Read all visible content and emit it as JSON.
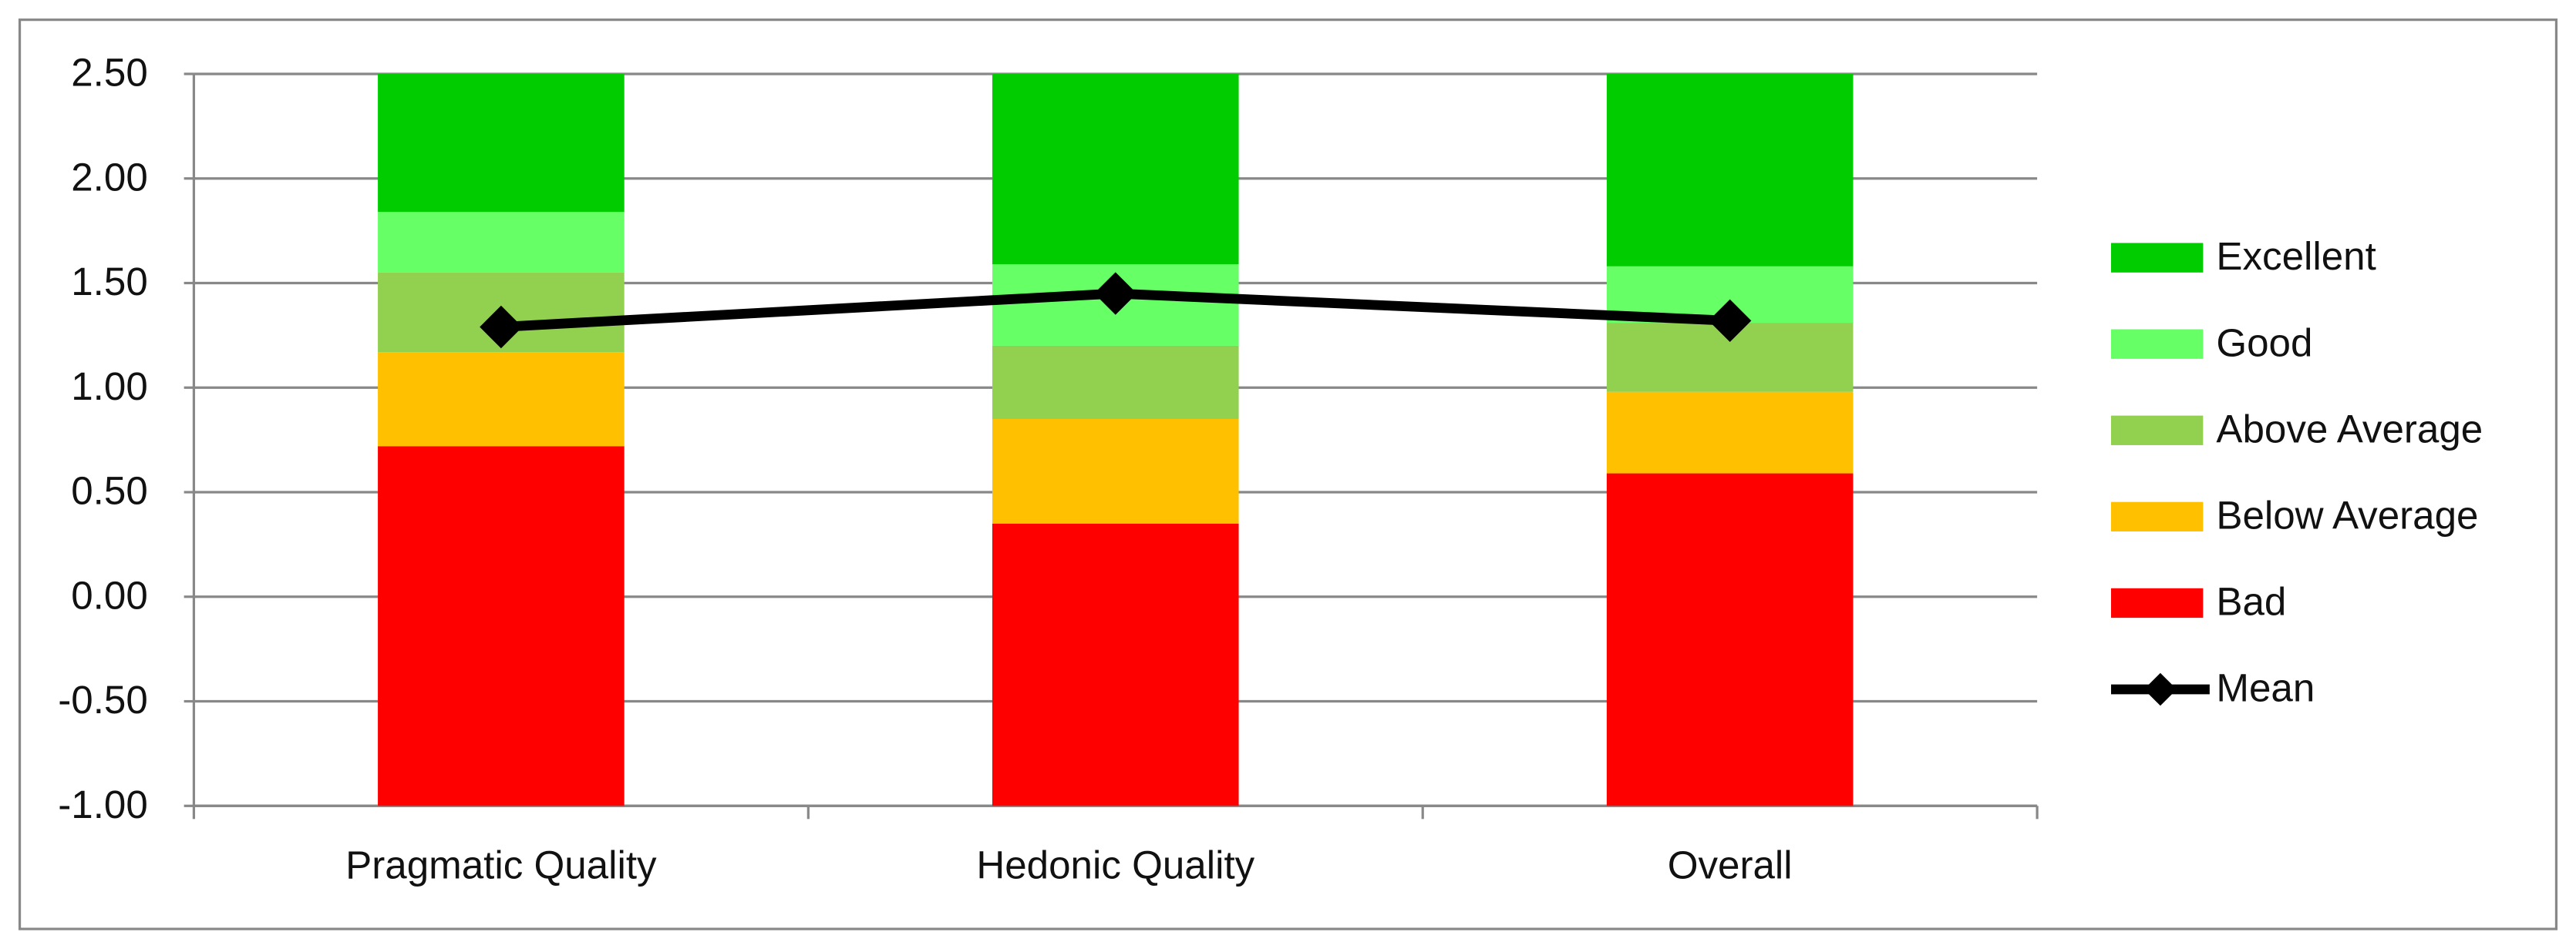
{
  "chart_data": {
    "type": "bar",
    "stacked": true,
    "categories": [
      "Pragmatic Quality",
      "Hedonic Quality",
      "Overall"
    ],
    "series": [
      {
        "name": "Bad",
        "color": "#ff0000",
        "values": [
          1.72,
          1.35,
          1.59
        ]
      },
      {
        "name": "Below Average",
        "color": "#ffc000",
        "values": [
          0.45,
          0.5,
          0.39
        ]
      },
      {
        "name": "Above Average",
        "color": "#92d050",
        "values": [
          0.38,
          0.35,
          0.33
        ]
      },
      {
        "name": "Good",
        "color": "#66ff66",
        "values": [
          0.29,
          0.39,
          0.27
        ]
      },
      {
        "name": "Excellent",
        "color": "#00cc00",
        "values": [
          0.66,
          0.91,
          0.92
        ]
      },
      {
        "name": "Mean",
        "color": "#000000",
        "type": "line",
        "values": [
          1.29,
          1.45,
          1.32
        ]
      }
    ],
    "ylim": [
      -1,
      2.5
    ],
    "yticks": [
      {
        "value": -1,
        "label": "-1.00"
      },
      {
        "value": -0.5,
        "label": "-0.50"
      },
      {
        "value": 0,
        "label": "0.00"
      },
      {
        "value": 0.5,
        "label": "0.50"
      },
      {
        "value": 1,
        "label": "1.00"
      },
      {
        "value": 1.5,
        "label": "1.50"
      },
      {
        "value": 2,
        "label": "2.00"
      },
      {
        "value": 2.5,
        "label": "2.50"
      }
    ],
    "grid": true,
    "legend": "right"
  }
}
